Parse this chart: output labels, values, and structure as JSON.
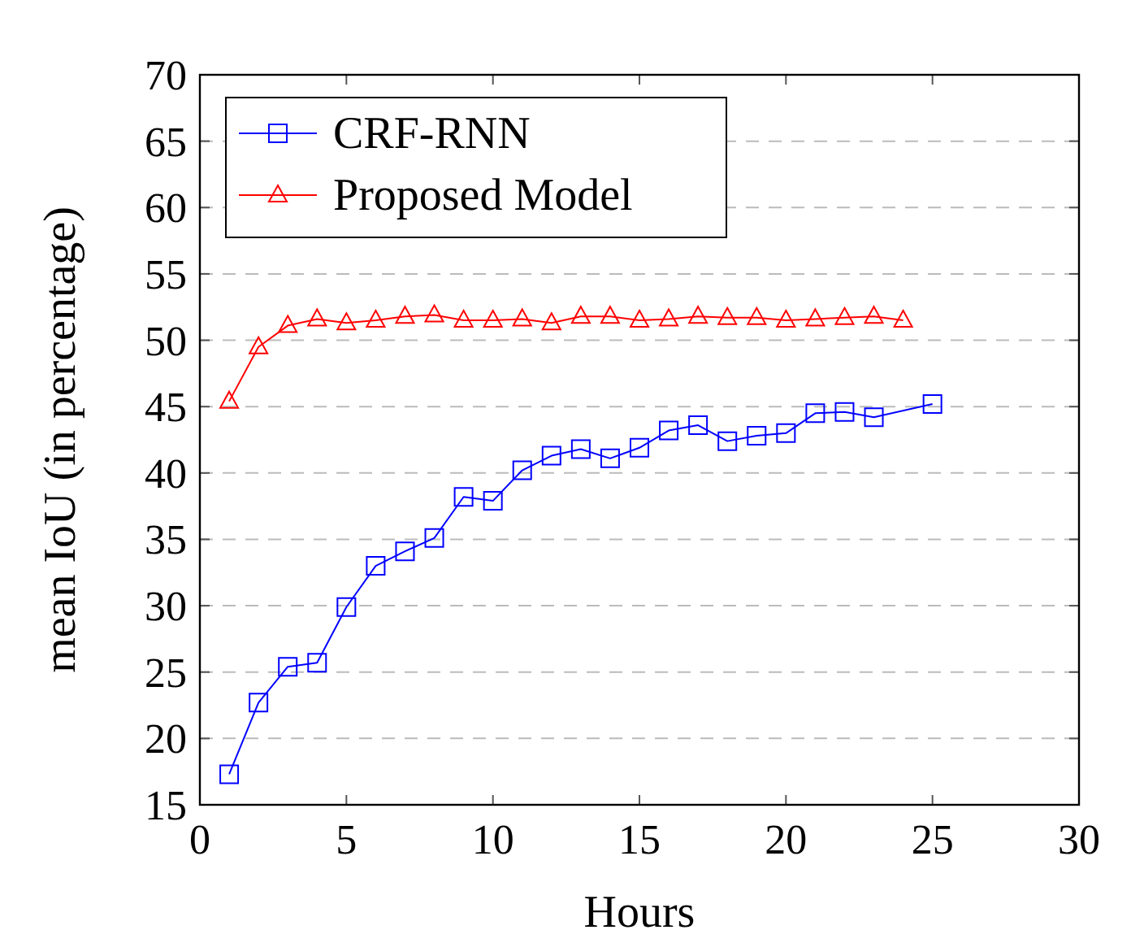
{
  "chart_data": {
    "type": "line",
    "xlabel": "Hours",
    "ylabel": "mean IoU (in percentage)",
    "series": [
      {
        "name": "CRF-RNN",
        "color": "#0000ff",
        "marker": "square",
        "x": [
          1,
          2,
          3,
          4,
          5,
          6,
          7,
          8,
          9,
          10,
          11,
          12,
          13,
          14,
          15,
          16,
          17,
          18,
          19,
          20,
          21,
          22,
          23,
          25
        ],
        "values": [
          17.3,
          22.7,
          25.4,
          25.7,
          29.9,
          33.0,
          34.1,
          35.1,
          38.2,
          37.9,
          40.2,
          41.3,
          41.8,
          41.1,
          41.9,
          43.2,
          43.6,
          42.4,
          42.8,
          43.0,
          44.5,
          44.6,
          44.2,
          45.2
        ]
      },
      {
        "name": "Proposed Model",
        "color": "#ff0000",
        "marker": "triangle",
        "x": [
          1,
          2,
          3,
          4,
          5,
          6,
          7,
          8,
          9,
          10,
          11,
          12,
          13,
          14,
          15,
          16,
          17,
          18,
          19,
          20,
          21,
          22,
          23,
          24
        ],
        "values": [
          45.4,
          49.5,
          51.1,
          51.6,
          51.3,
          51.5,
          51.8,
          51.9,
          51.5,
          51.5,
          51.6,
          51.3,
          51.8,
          51.8,
          51.5,
          51.6,
          51.8,
          51.7,
          51.7,
          51.5,
          51.6,
          51.7,
          51.8,
          51.5
        ]
      }
    ],
    "xlim": [
      0,
      30
    ],
    "xticks": [
      0,
      5,
      10,
      15,
      20,
      25,
      30
    ],
    "ylim": [
      15,
      70
    ],
    "yticks": [
      15,
      20,
      25,
      30,
      35,
      40,
      45,
      50,
      55,
      60,
      65,
      70
    ],
    "grid": "y",
    "legend": "top left",
    "line_style": "solid"
  }
}
